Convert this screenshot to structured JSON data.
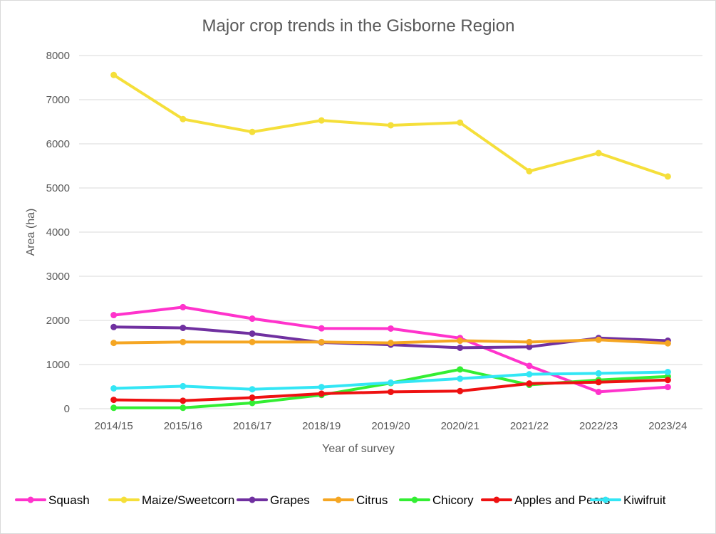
{
  "chart_data": {
    "type": "line",
    "title": "Major crop trends in the Gisborne Region",
    "xlabel": "Year of survey",
    "ylabel": "Area (ha)",
    "ylim": [
      0,
      8000
    ],
    "yticks": [
      0,
      1000,
      2000,
      3000,
      4000,
      5000,
      6000,
      7000,
      8000
    ],
    "grid": "horizontal",
    "legend_position": "bottom",
    "categories": [
      "2014/15",
      "2015/16",
      "2016/17",
      "2018/19",
      "2019/20",
      "2020/21",
      "2021/22",
      "2022/23",
      "2023/24"
    ],
    "series": [
      {
        "name": "Squash",
        "color": "#ff33cc",
        "values": [
          2120,
          2300,
          2040,
          1820,
          1815,
          1600,
          970,
          380,
          490
        ]
      },
      {
        "name": "Maize/Sweetcorn",
        "color": "#f5df3a",
        "values": [
          7560,
          6560,
          6270,
          6530,
          6420,
          6480,
          5380,
          5790,
          5260
        ]
      },
      {
        "name": "Grapes",
        "color": "#7030a0",
        "values": [
          1850,
          1830,
          1700,
          1500,
          1450,
          1380,
          1400,
          1600,
          1540
        ]
      },
      {
        "name": "Citrus",
        "color": "#f5a623",
        "values": [
          1490,
          1510,
          1510,
          1510,
          1490,
          1540,
          1510,
          1560,
          1480
        ]
      },
      {
        "name": "Chicory",
        "color": "#33ee33",
        "values": [
          20,
          20,
          130,
          310,
          580,
          890,
          540,
          650,
          730
        ]
      },
      {
        "name": "Apples and Pears",
        "color": "#ee1111",
        "values": [
          200,
          180,
          250,
          340,
          380,
          400,
          570,
          600,
          650
        ]
      },
      {
        "name": "Kiwifruit",
        "color": "#33e6f5",
        "values": [
          460,
          510,
          440,
          490,
          590,
          680,
          780,
          800,
          830
        ]
      }
    ]
  }
}
